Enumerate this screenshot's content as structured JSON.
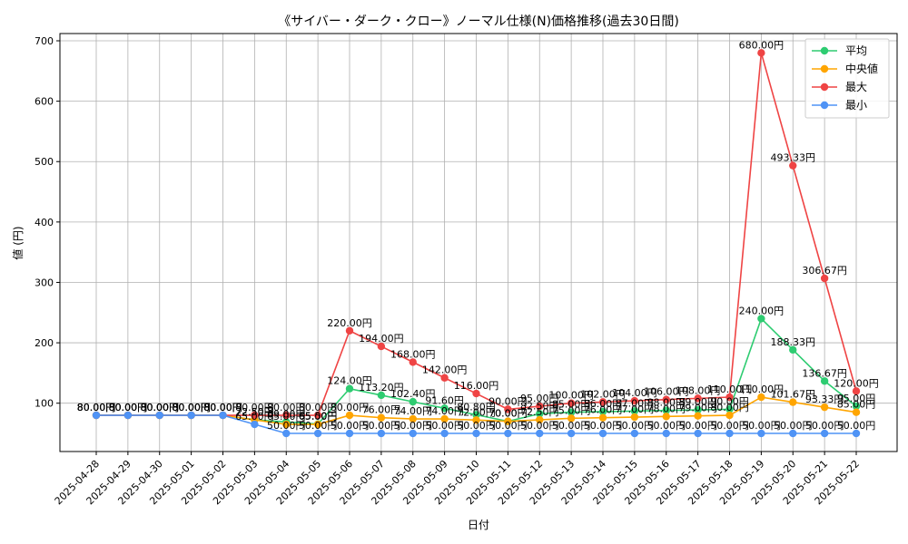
{
  "chart_data": {
    "type": "line",
    "title": "《サイバー・ダーク・クロー》ノーマル仕様(N)価格推移(過去30日間)",
    "xlabel": "日付",
    "ylabel": "値 (円)",
    "ylim": [
      20,
      712
    ],
    "yticks": [
      100,
      200,
      300,
      400,
      500,
      600,
      700
    ],
    "grid": true,
    "legend_position": "top-right",
    "label_suffix": "円",
    "categories": [
      "2025-04-28",
      "2025-04-29",
      "2025-04-30",
      "2025-05-01",
      "2025-05-02",
      "2025-05-03",
      "2025-05-04",
      "2025-05-05",
      "2025-05-06",
      "2025-05-07",
      "2025-05-08",
      "2025-05-09",
      "2025-05-10",
      "2025-05-11",
      "2025-05-12",
      "2025-05-13",
      "2025-05-14",
      "2025-05-15",
      "2025-05-16",
      "2025-05-17",
      "2025-05-18",
      "2025-05-19",
      "2025-05-20",
      "2025-05-21",
      "2025-05-22"
    ],
    "series": [
      {
        "name": "平均",
        "color": "#2ecc71",
        "values": [
          80,
          80,
          80,
          80,
          80,
          72.5,
          69,
          65.5,
          124,
          113.2,
          102.4,
          91.6,
          80.8,
          70,
          82.5,
          85,
          86,
          87,
          88,
          89,
          90,
          240,
          188.33,
          136.67,
          95
        ]
      },
      {
        "name": "中央値",
        "color": "#ffa500",
        "values": [
          80,
          80,
          80,
          80,
          80,
          72.5,
          65,
          65,
          80,
          76,
          74,
          74,
          72,
          70,
          72.5,
          75,
          76,
          77,
          78,
          79,
          80,
          110,
          101.67,
          93.33,
          85
        ]
      },
      {
        "name": "最大",
        "color": "#ef4444",
        "values": [
          80,
          80,
          80,
          80,
          80,
          80,
          80,
          80,
          220,
          194,
          168,
          142,
          116,
          90,
          95,
          100,
          102,
          104,
          106,
          108,
          110,
          680,
          493.33,
          306.67,
          120
        ]
      },
      {
        "name": "最小",
        "color": "#4f93f5",
        "values": [
          80,
          80,
          80,
          80,
          80,
          65,
          50,
          50,
          50,
          50,
          50,
          50,
          50,
          50,
          50,
          50,
          50,
          50,
          50,
          50,
          50,
          50,
          50,
          50,
          50
        ]
      }
    ]
  }
}
